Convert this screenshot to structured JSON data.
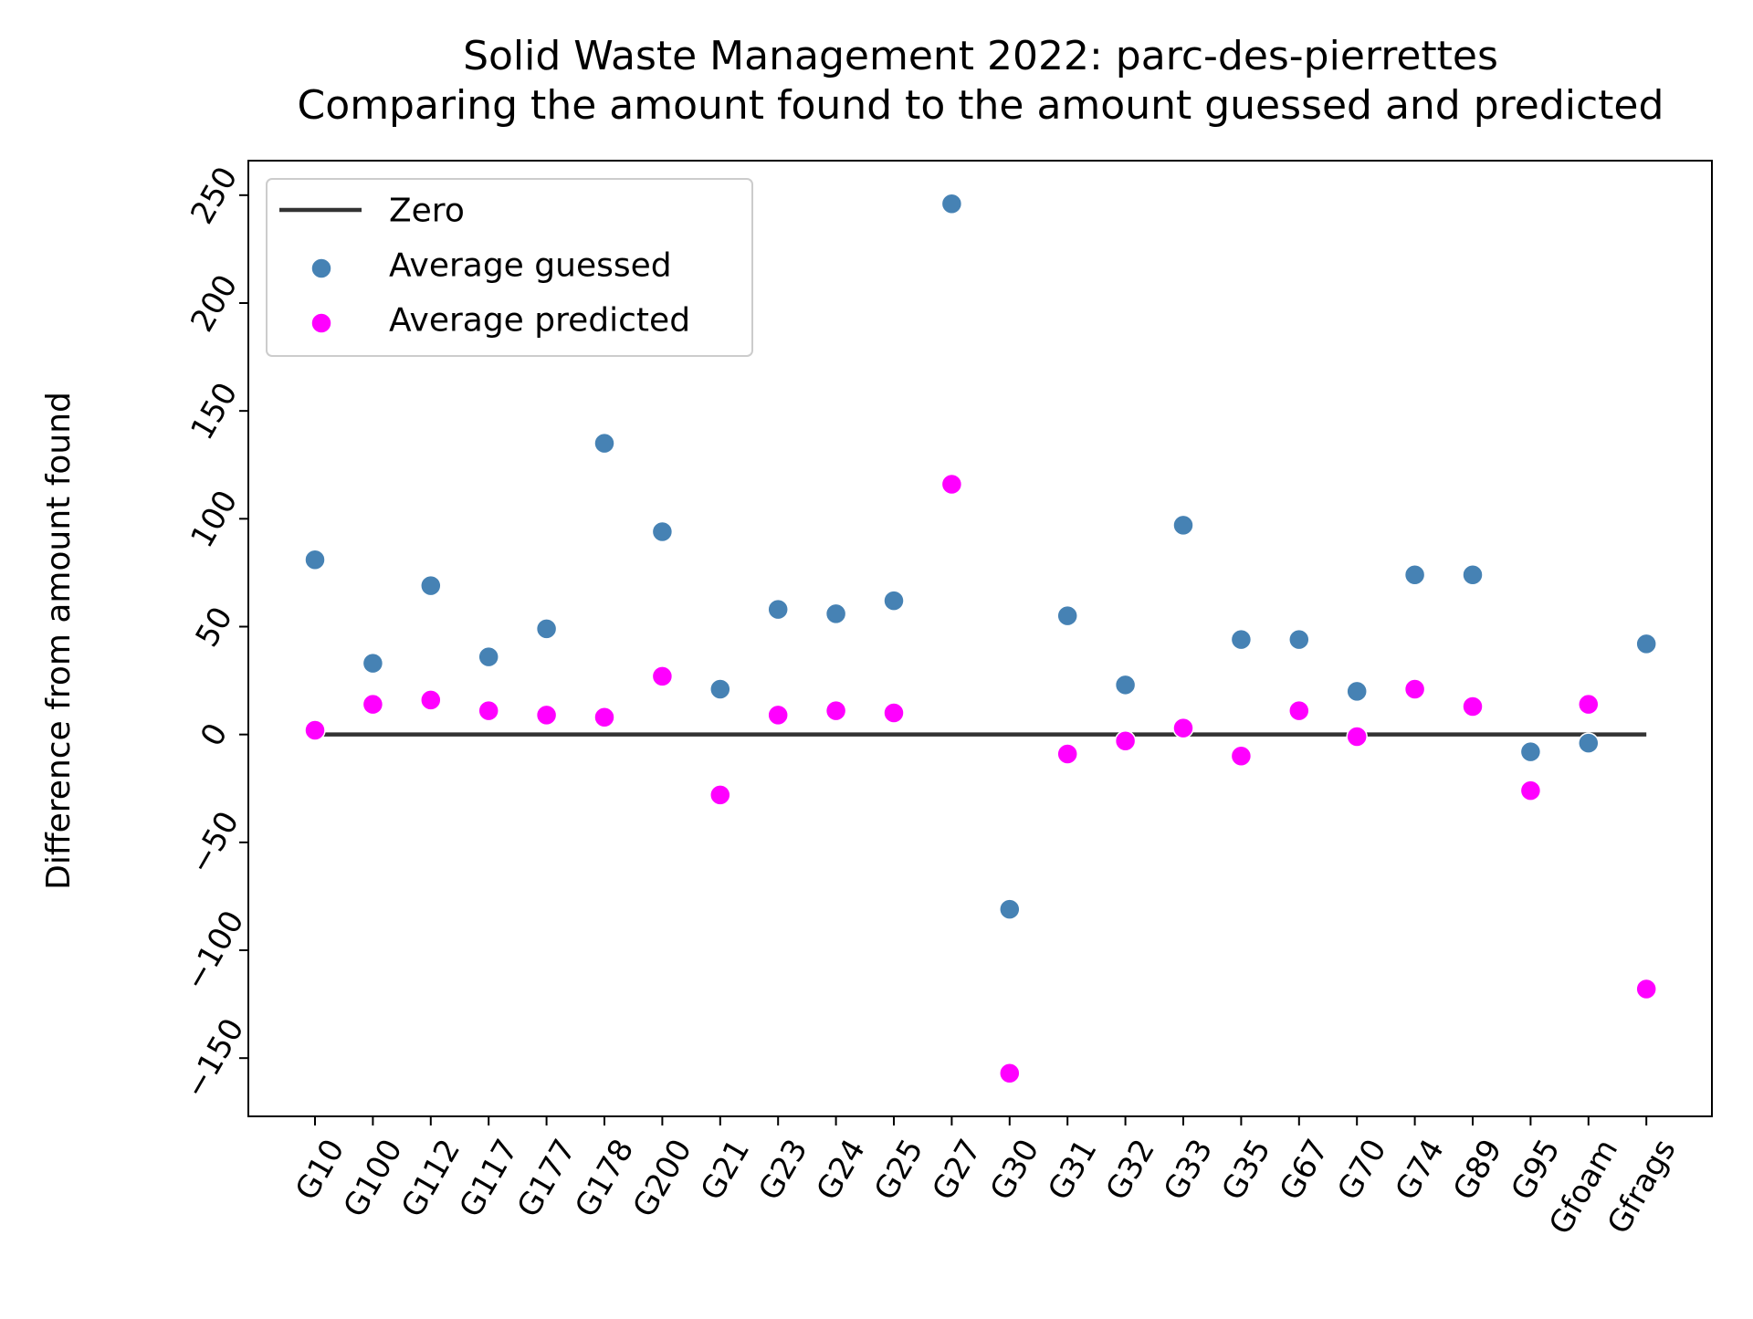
{
  "chart_data": {
    "type": "scatter",
    "title": "Solid Waste Management 2022: parc-des-pierrettes",
    "subtitle": "Comparing the amount found to the amount guessed and predicted",
    "xlabel": "",
    "ylabel": "Difference from amount found",
    "ylim": [
      -177,
      266
    ],
    "yticks": [
      -150,
      -100,
      -50,
      0,
      50,
      100,
      150,
      200,
      250
    ],
    "grid": false,
    "legend_position": "upper-left",
    "categories": [
      "G10",
      "G100",
      "G112",
      "G117",
      "G177",
      "G178",
      "G200",
      "G21",
      "G23",
      "G24",
      "G25",
      "G27",
      "G30",
      "G31",
      "G32",
      "G33",
      "G35",
      "G67",
      "G70",
      "G74",
      "G89",
      "G95",
      "Gfoam",
      "Gfrags"
    ],
    "zero_line": {
      "name": "Zero",
      "value": 0,
      "color": "#333333"
    },
    "series": [
      {
        "name": "Average guessed",
        "color": "#4682b4",
        "values": [
          81,
          33,
          69,
          36,
          49,
          135,
          94,
          21,
          58,
          56,
          62,
          246,
          -81,
          55,
          23,
          97,
          44,
          44,
          20,
          74,
          74,
          -8,
          -4,
          42
        ]
      },
      {
        "name": "Average predicted",
        "color": "#ff00ff",
        "values": [
          2,
          14,
          16,
          11,
          9,
          8,
          27,
          -28,
          9,
          11,
          10,
          116,
          -157,
          -9,
          -3,
          3,
          -10,
          11,
          -1,
          21,
          13,
          -26,
          14,
          -118
        ]
      }
    ]
  }
}
